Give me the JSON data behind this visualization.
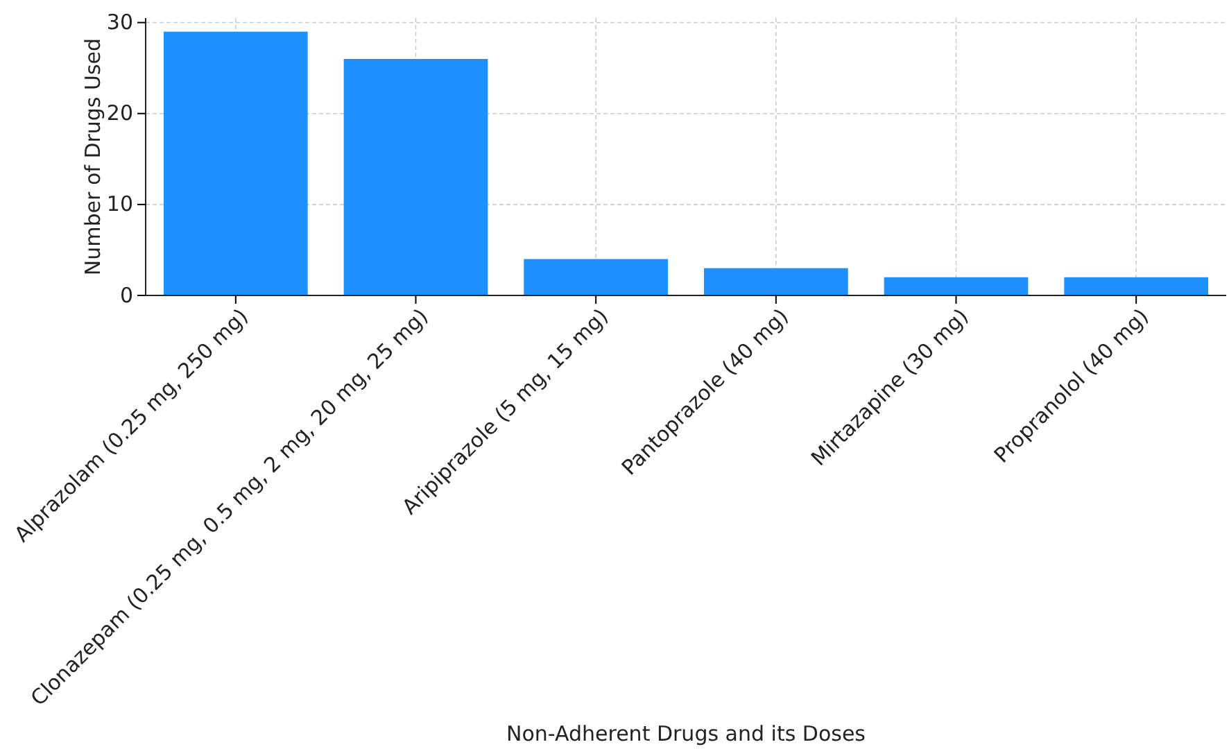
{
  "chart_data": {
    "type": "bar",
    "xlabel": "Non-Adherent Drugs and its Doses",
    "ylabel": "Number of Drugs Used",
    "categories": [
      "Alprazolam (0.25 mg, 250 mg)",
      "Clonazepam (0.25 mg, 0.5 mg, 2 mg, 20 mg, 25 mg)",
      "Aripiprazole (5 mg, 15 mg)",
      "Pantoprazole (40 mg)",
      "Mirtazapine (30 mg)",
      "Propranolol (40 mg)"
    ],
    "values": [
      29,
      26,
      4,
      3,
      2,
      2
    ],
    "color": "#1e90ff",
    "ylim": [
      0,
      30.5
    ],
    "yticks": [
      0,
      10,
      20,
      30
    ],
    "grid": true
  }
}
